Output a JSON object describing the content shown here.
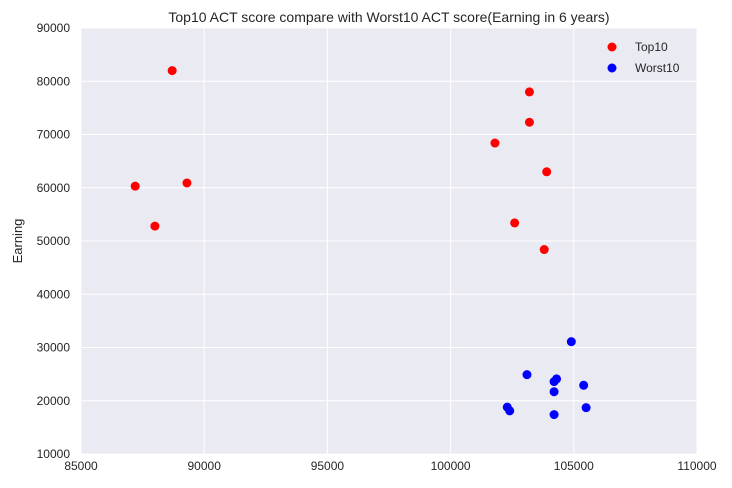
{
  "chart_data": {
    "type": "scatter",
    "title": "Top10 ACT score compare with Worst10 ACT score(Earning in 6 years)",
    "xlabel": "",
    "ylabel": "Earning",
    "xlim": [
      85000,
      110000
    ],
    "ylim": [
      10000,
      90000
    ],
    "xticks": [
      85000,
      90000,
      95000,
      100000,
      105000,
      110000
    ],
    "yticks": [
      10000,
      20000,
      30000,
      40000,
      50000,
      60000,
      70000,
      80000,
      90000
    ],
    "xtick_labels": [
      "85000",
      "90000",
      "95000",
      "100000",
      "105000",
      "110000"
    ],
    "ytick_labels": [
      "10000",
      "20000",
      "30000",
      "40000",
      "50000",
      "60000",
      "70000",
      "80000",
      "90000"
    ],
    "grid": true,
    "background": "#eaeaf2",
    "legend_position": "top-right",
    "series": [
      {
        "name": "Top10",
        "color": "#ff0000",
        "points": [
          {
            "x": 88700,
            "y": 82000
          },
          {
            "x": 87200,
            "y": 60300
          },
          {
            "x": 89300,
            "y": 60900
          },
          {
            "x": 88000,
            "y": 52800
          },
          {
            "x": 103200,
            "y": 78000
          },
          {
            "x": 103200,
            "y": 72300
          },
          {
            "x": 101800,
            "y": 68400
          },
          {
            "x": 103900,
            "y": 63000
          },
          {
            "x": 102600,
            "y": 53400
          },
          {
            "x": 103800,
            "y": 48400
          }
        ]
      },
      {
        "name": "Worst10",
        "color": "#0000ff",
        "points": [
          {
            "x": 104900,
            "y": 31100
          },
          {
            "x": 103100,
            "y": 24900
          },
          {
            "x": 104300,
            "y": 24100
          },
          {
            "x": 104200,
            "y": 23600
          },
          {
            "x": 105400,
            "y": 22900
          },
          {
            "x": 104200,
            "y": 21700
          },
          {
            "x": 102300,
            "y": 18800
          },
          {
            "x": 102400,
            "y": 18100
          },
          {
            "x": 105500,
            "y": 18700
          },
          {
            "x": 104200,
            "y": 17400
          }
        ]
      }
    ]
  }
}
